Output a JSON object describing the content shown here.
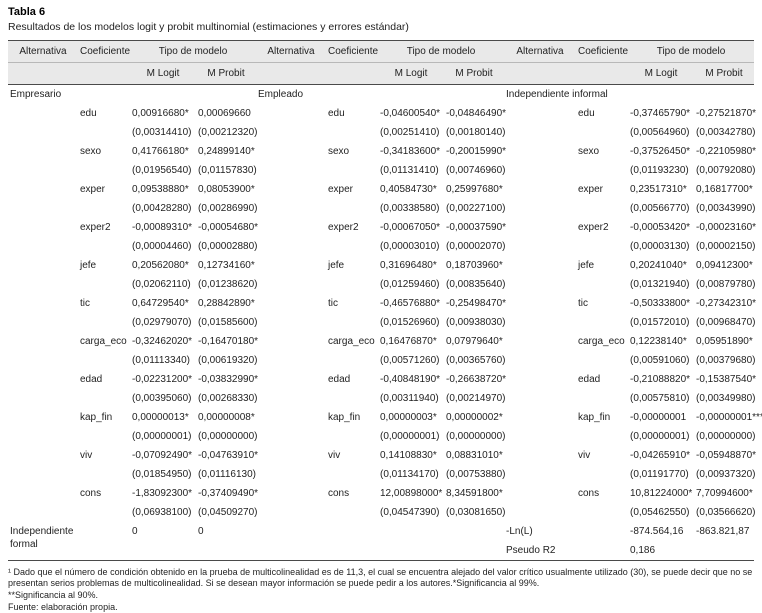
{
  "title": "Tabla 6",
  "subtitle": "Resultados de los modelos logit y probit multinomial (estimaciones y errores estándar)",
  "header": {
    "alternativa": "Alternativa",
    "coeficiente": "Coeficiente",
    "tipo_modelo": "Tipo de modelo",
    "m_logit": "M Logit",
    "m_probit": "M Probit"
  },
  "groups": [
    {
      "alternativa": "Empresario",
      "rows": [
        {
          "var": "edu",
          "logit": "0,00916680*",
          "logit_se": "(0,00314410)",
          "probit": "0,00069660",
          "probit_se": "(0,00212320)"
        },
        {
          "var": "sexo",
          "logit": "0,41766180*",
          "logit_se": "(0,01956540)",
          "probit": "0,24899140*",
          "probit_se": "(0,01157830)"
        },
        {
          "var": "exper",
          "logit": "0,09538880*",
          "logit_se": "(0,00428280)",
          "probit": "0,08053900*",
          "probit_se": "(0,00286990)"
        },
        {
          "var": "exper2",
          "logit": "-0,00089310*",
          "logit_se": "(0,00004460)",
          "probit": "-0,00054680*",
          "probit_se": "(0,00002880)"
        },
        {
          "var": "jefe",
          "logit": "0,20562080*",
          "logit_se": "(0,02062110)",
          "probit": "0,12734160*",
          "probit_se": "(0,01238620)"
        },
        {
          "var": "tic",
          "logit": "0,64729540*",
          "logit_se": "(0,02979070)",
          "probit": "0,28842890*",
          "probit_se": "(0,01585600)"
        },
        {
          "var": "carga_eco",
          "logit": "-0,32462020*",
          "logit_se": "(0,01113340)",
          "probit": "-0,16470180*",
          "probit_se": "(0,00619320)"
        },
        {
          "var": "edad",
          "logit": "-0,02231200*",
          "logit_se": "(0,00395060)",
          "probit": "-0,03832990*",
          "probit_se": "(0,00268330)"
        },
        {
          "var": "kap_fin",
          "logit": "0,00000013*",
          "logit_se": "(0,00000001)",
          "probit": "0,00000008*",
          "probit_se": "(0,00000000)"
        },
        {
          "var": "viv",
          "logit": "-0,07092490*",
          "logit_se": "(0,01854950)",
          "probit": "-0,04763910*",
          "probit_se": "(0,01116130)"
        },
        {
          "var": "cons",
          "logit": "-1,83092300*",
          "logit_se": "(0,06938100)",
          "probit": "-0,37409490*",
          "probit_se": "(0,04509270)"
        }
      ]
    },
    {
      "alternativa": "Empleado",
      "rows": [
        {
          "var": "edu",
          "logit": "-0,04600540*",
          "logit_se": "(0,00251410)",
          "probit": "-0,04846490*",
          "probit_se": "(0,00180140)"
        },
        {
          "var": "sexo",
          "logit": "-0,34183600*",
          "logit_se": "(0,01131410)",
          "probit": "-0,20015990*",
          "probit_se": "(0,00746960)"
        },
        {
          "var": "exper",
          "logit": "0,40584730*",
          "logit_se": "(0,00338580)",
          "probit": "0,25997680*",
          "probit_se": "(0,00227100)"
        },
        {
          "var": "exper2",
          "logit": "-0,00067050*",
          "logit_se": "(0,00003010)",
          "probit": "-0,00037590*",
          "probit_se": "(0,00002070)"
        },
        {
          "var": "jefe",
          "logit": "0,31696480*",
          "logit_se": "(0,01259460)",
          "probit": "0,18703960*",
          "probit_se": "(0,00835640)"
        },
        {
          "var": "tic",
          "logit": "-0,46576880*",
          "logit_se": "(0,01526960)",
          "probit": "-0,25498470*",
          "probit_se": "(0,00938030)"
        },
        {
          "var": "carga_eco",
          "logit": "0,16476870*",
          "logit_se": "(0,00571260)",
          "probit": "0,07979640*",
          "probit_se": "(0,00365760)"
        },
        {
          "var": "edad",
          "logit": "-0,40848190*",
          "logit_se": "(0,00311940)",
          "probit": "-0,26638720*",
          "probit_se": "(0,00214970)"
        },
        {
          "var": "kap_fin",
          "logit": "0,00000003*",
          "logit_se": "(0,00000001)",
          "probit": "0,00000002*",
          "probit_se": "(0,00000000)"
        },
        {
          "var": "viv",
          "logit": "0,14108830*",
          "logit_se": "(0,01134170)",
          "probit": "0,08831010*",
          "probit_se": "(0,00753880)"
        },
        {
          "var": "cons",
          "logit": "12,00898000*",
          "logit_se": "(0,04547390)",
          "probit": "8,34591800*",
          "probit_se": "(0,03081650)"
        }
      ]
    },
    {
      "alternativa": "Independiente informal",
      "rows": [
        {
          "var": "edu",
          "logit": "-0,37465790*",
          "logit_se": "(0,00564960)",
          "probit": "-0,27521870*",
          "probit_se": "(0,00342780)"
        },
        {
          "var": "sexo",
          "logit": "-0,37526450*",
          "logit_se": "(0,01193230)",
          "probit": "-0,22105980*",
          "probit_se": "(0,00792080)"
        },
        {
          "var": "exper",
          "logit": "0,23517310*",
          "logit_se": "(0,00566770)",
          "probit": "0,16817700*",
          "probit_se": "(0,00343990)"
        },
        {
          "var": "exper2",
          "logit": "-0,00053420*",
          "logit_se": "(0,00003130)",
          "probit": "-0,00023160*",
          "probit_se": "(0,00002150)"
        },
        {
          "var": "jefe",
          "logit": "0,20241040*",
          "logit_se": "(0,01321940)",
          "probit": "0,09412300*",
          "probit_se": "(0,00879780)"
        },
        {
          "var": "tic",
          "logit": "-0,50333800*",
          "logit_se": "(0,01572010)",
          "probit": "-0,27342310*",
          "probit_se": "(0,00968470)"
        },
        {
          "var": "carga_eco",
          "logit": "0,12238140*",
          "logit_se": "(0,00591060)",
          "probit": "0,05951890*",
          "probit_se": "(0,00379680)"
        },
        {
          "var": "edad",
          "logit": "-0,21088820*",
          "logit_se": "(0,00575810)",
          "probit": "-0,15387540*",
          "probit_se": "(0,00349980)"
        },
        {
          "var": "kap_fin",
          "logit": "-0,00000001",
          "logit_se": "(0,00000001)",
          "probit": "-0,00000001***",
          "probit_se": "(0,00000000)"
        },
        {
          "var": "viv",
          "logit": "-0,04265910*",
          "logit_se": "(0,01191770)",
          "probit": "-0,05948870*",
          "probit_se": "(0,00937320)"
        },
        {
          "var": "cons",
          "logit": "10,81224000*",
          "logit_se": "(0,05462550)",
          "probit": "7,70994600*",
          "probit_se": "(0,03566620)"
        }
      ]
    }
  ],
  "footer": {
    "base_label": "Independiente formal",
    "base_logit": "0",
    "base_probit": "0",
    "lnl_label": "-Ln(L)",
    "lnl_logit": "-874.564,16",
    "lnl_probit": "-863.821,87",
    "pseudo_label": "Pseudo R2",
    "pseudo_logit": "0,186"
  },
  "footnotes": [
    "¹ Dado que el número de condición obtenido en la prueba de multicolinealidad es de 11,3, el cual se encuentra alejado del valor crítico usualmente utilizado (30), se puede decir que no se presentan serios problemas de multicolinealidad. Si se desean mayor información se puede pedir a los autores.*Significancia al 99%.",
    "**Significancia al 90%.",
    "Fuente: elaboración propia."
  ]
}
